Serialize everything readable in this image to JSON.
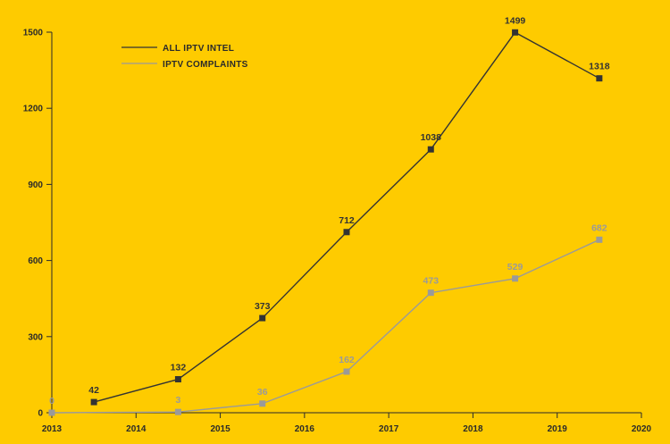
{
  "chart_data": {
    "type": "line",
    "title": "",
    "xlabel": "",
    "ylabel": "",
    "background_color": "#FECB00",
    "grid": false,
    "legend_position": "top-left",
    "x_ticks": [
      "2013",
      "2014",
      "2015",
      "2016",
      "2017",
      "2018",
      "2019",
      "2020"
    ],
    "xlim": [
      2013,
      2020
    ],
    "y_ticks": [
      0,
      300,
      600,
      900,
      1200,
      1500
    ],
    "ylim": [
      0,
      1500
    ],
    "series": [
      {
        "name": "ALL IPTV INTEL",
        "color": "#333333",
        "x": [
          2013.5,
          2014.5,
          2015.5,
          2016.5,
          2017.5,
          2018.5,
          2019.5
        ],
        "values": [
          42,
          132,
          373,
          712,
          1038,
          1499,
          1318
        ],
        "labels": [
          "42",
          "132",
          "373",
          "712",
          "1038",
          "1499",
          "1318"
        ]
      },
      {
        "name": "IPTV COMPLAINTS",
        "color": "#9A9A9A",
        "x": [
          2013.0,
          2014.5,
          2015.5,
          2016.5,
          2017.5,
          2018.5,
          2019.5
        ],
        "values": [
          0,
          3,
          36,
          162,
          473,
          529,
          682
        ],
        "labels": [
          "0",
          "3",
          "36",
          "162",
          "473",
          "529",
          "682"
        ]
      }
    ]
  }
}
